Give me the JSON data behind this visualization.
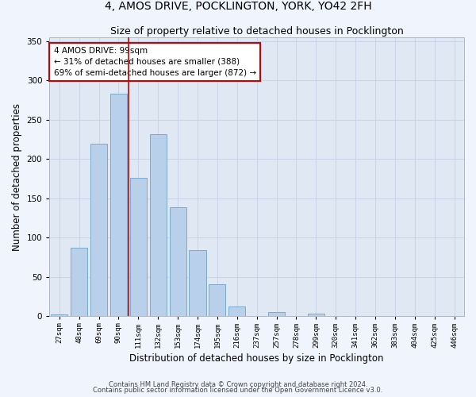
{
  "title1": "4, AMOS DRIVE, POCKLINGTON, YORK, YO42 2FH",
  "title2": "Size of property relative to detached houses in Pocklington",
  "xlabel": "Distribution of detached houses by size in Pocklington",
  "ylabel": "Number of detached properties",
  "categories": [
    "27sqm",
    "48sqm",
    "69sqm",
    "90sqm",
    "111sqm",
    "132sqm",
    "153sqm",
    "174sqm",
    "195sqm",
    "216sqm",
    "237sqm",
    "257sqm",
    "278sqm",
    "299sqm",
    "320sqm",
    "341sqm",
    "362sqm",
    "383sqm",
    "404sqm",
    "425sqm",
    "446sqm"
  ],
  "values": [
    2,
    87,
    219,
    283,
    176,
    232,
    139,
    84,
    41,
    12,
    0,
    5,
    0,
    3,
    0,
    0,
    0,
    0,
    0,
    0,
    0
  ],
  "bar_color": "#b8d0ea",
  "bar_edge_color": "#7aaace",
  "vline_x": 3.5,
  "vline_color": "#cc0000",
  "annotation_text": "4 AMOS DRIVE: 99sqm\n← 31% of detached houses are smaller (388)\n69% of semi-detached houses are larger (872) →",
  "annotation_box_color": "#ffffff",
  "annotation_box_edge": "#cc0000",
  "ylim": [
    0,
    355
  ],
  "yticks": [
    0,
    50,
    100,
    150,
    200,
    250,
    300,
    350
  ],
  "grid_color": "#c8d4e8",
  "bg_color": "#e0e8f4",
  "footer1": "Contains HM Land Registry data © Crown copyright and database right 2024.",
  "footer2": "Contains public sector information licensed under the Open Government Licence v3.0.",
  "title1_fontsize": 10,
  "title2_fontsize": 9,
  "xlabel_fontsize": 8.5,
  "ylabel_fontsize": 8.5
}
